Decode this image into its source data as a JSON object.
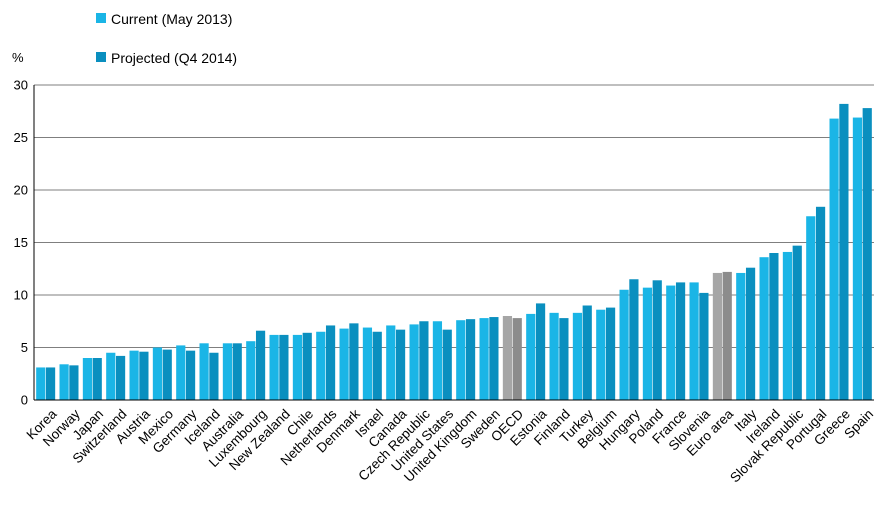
{
  "chart_data": {
    "type": "bar",
    "unit_label": "%",
    "ylim": [
      0,
      30
    ],
    "yticks": [
      "0",
      "5",
      "10",
      "15",
      "20",
      "25",
      "30"
    ],
    "grid": true,
    "legend_position": "top-left",
    "categories": [
      "Korea",
      "Norway",
      "Japan",
      "Switzerland",
      "Austria",
      "Mexico",
      "Germany",
      "Iceland",
      "Australia",
      "Luxembourg",
      "New Zealand",
      "Chile",
      "Netherlands",
      "Denmark",
      "Israel",
      "Canada",
      "Czech Republic",
      "United States",
      "United Kingdom",
      "Sweden",
      "OECD",
      "Estonia",
      "Finland",
      "Turkey",
      "Belgium",
      "Hungary",
      "Poland",
      "France",
      "Slovenia",
      "Euro area",
      "Italy",
      "Ireland",
      "Slovak Republic",
      "Portugal",
      "Greece",
      "Spain"
    ],
    "highlight_categories": [
      "OECD",
      "Euro area"
    ],
    "series": [
      {
        "name": "Current (May 2013)",
        "color": "#1ab5e6",
        "highlight_color": "#a6a6a6",
        "values": [
          3.1,
          3.4,
          4.0,
          4.5,
          4.7,
          5.0,
          5.2,
          5.4,
          5.4,
          5.6,
          6.2,
          6.2,
          6.5,
          6.8,
          6.9,
          7.1,
          7.2,
          7.5,
          7.6,
          7.8,
          8.0,
          8.2,
          8.3,
          8.3,
          8.6,
          10.5,
          10.7,
          10.9,
          11.2,
          12.1,
          12.1,
          13.6,
          14.1,
          17.5,
          26.8,
          26.9
        ]
      },
      {
        "name": "Projected (Q4 2014)",
        "color": "#0a8fbf",
        "highlight_color": "#8c8c8c",
        "values": [
          3.1,
          3.3,
          4.0,
          4.2,
          4.6,
          4.8,
          4.7,
          4.5,
          5.4,
          6.6,
          6.2,
          6.4,
          7.1,
          7.3,
          6.5,
          6.7,
          7.5,
          6.7,
          7.7,
          7.9,
          7.8,
          9.2,
          7.8,
          9.0,
          8.8,
          11.5,
          11.4,
          11.2,
          10.2,
          12.2,
          12.6,
          14.0,
          14.7,
          18.4,
          28.2,
          27.8
        ]
      }
    ]
  }
}
